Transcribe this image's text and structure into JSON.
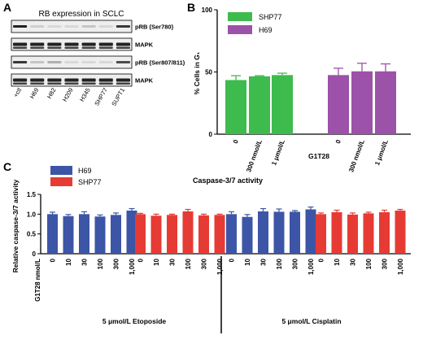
{
  "panels": {
    "a": "A",
    "b": "B",
    "c": "C"
  },
  "blot": {
    "title": "RB expression in SCLC",
    "rows": [
      "pRB (Ser780)",
      "MAPK",
      "pRB (Ser807/811)",
      "MAPK"
    ],
    "lanes": [
      "+ctl",
      "H69",
      "H82",
      "H209",
      "H345",
      "SHP77",
      "SUPT1"
    ]
  },
  "colors": {
    "green": "#3dbb4d",
    "purple": "#9b52a8",
    "blue": "#3c55a6",
    "red": "#e63b35",
    "blot_bg": "#eeeeee",
    "band": "#222222"
  },
  "chart_data": [
    {
      "type": "bar",
      "panel": "B",
      "ylabel": "% Cells in G₁",
      "xlabel": "G1T28",
      "ylim": [
        0,
        100
      ],
      "yticks": [
        0,
        50,
        100
      ],
      "legend": [
        "SHP77",
        "H69"
      ],
      "legend_position": "top-left",
      "categories": [
        "0",
        "300 nmol/L",
        "1 μmol/L"
      ],
      "series": [
        {
          "name": "SHP77",
          "values": [
            43.5,
            46.5,
            47.5
          ],
          "errors": [
            3.5,
            0.5,
            1.5
          ]
        },
        {
          "name": "H69",
          "values": [
            47.5,
            50.5,
            50.5
          ],
          "errors": [
            5.5,
            6.5,
            6
          ]
        }
      ]
    },
    {
      "type": "bar",
      "panel": "C",
      "title": "Caspase-3/7 activity",
      "ylabel": "Relative caspase-3/7 activity",
      "ylim": [
        0,
        1.5
      ],
      "yticks": [
        "0",
        "0.5",
        "1.0",
        "1.5"
      ],
      "ytick_values": [
        0,
        0.5,
        1.0,
        1.5
      ],
      "legend": [
        "H69",
        "SHP77"
      ],
      "legend_position": "top-left",
      "row_label": "G1T28 nmol/L",
      "categories": [
        "0",
        "10",
        "30",
        "100",
        "300",
        "1,000"
      ],
      "treatments": [
        "5 μmol/L Etoposide",
        "5 μmol/L Cisplatin"
      ],
      "series": [
        {
          "name": "H69",
          "treatment": "5 μmol/L Etoposide",
          "values": [
            1.0,
            0.95,
            1.0,
            0.94,
            0.98,
            1.09
          ],
          "errors": [
            0.05,
            0.04,
            0.06,
            0.04,
            0.05,
            0.05
          ]
        },
        {
          "name": "SHP77",
          "treatment": "5 μmol/L Etoposide",
          "values": [
            1.0,
            0.96,
            0.98,
            1.07,
            0.97,
            0.98
          ],
          "errors": [
            0.02,
            0.04,
            0.02,
            0.05,
            0.03,
            0.02
          ]
        },
        {
          "name": "H69",
          "treatment": "5 μmol/L Cisplatin",
          "values": [
            1.0,
            0.93,
            1.07,
            1.06,
            1.06,
            1.12
          ],
          "errors": [
            0.06,
            0.06,
            0.07,
            0.07,
            0.03,
            0.06
          ]
        },
        {
          "name": "SHP77",
          "treatment": "5 μmol/L Cisplatin",
          "values": [
            1.0,
            1.05,
            0.99,
            1.02,
            1.05,
            1.09
          ],
          "errors": [
            0.03,
            0.05,
            0.04,
            0.03,
            0.05,
            0.03
          ]
        }
      ]
    }
  ]
}
